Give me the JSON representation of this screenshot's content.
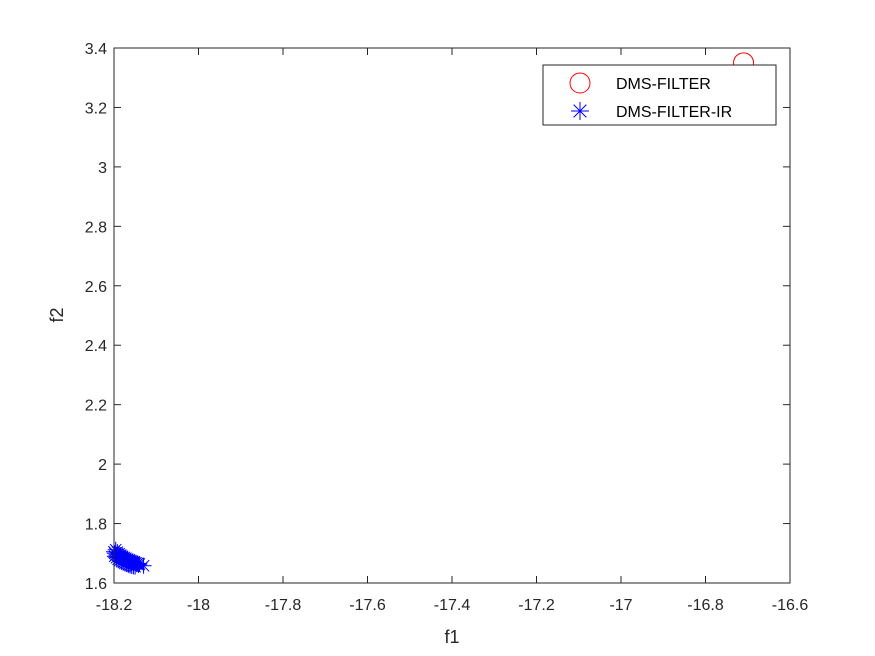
{
  "chart_data": {
    "type": "scatter",
    "title": "",
    "xlabel": "f1",
    "ylabel": "f2",
    "xlim": [
      -18.2,
      -16.6
    ],
    "ylim": [
      1.6,
      3.4
    ],
    "xticks": [
      -18.2,
      -18,
      -17.8,
      -17.6,
      -17.4,
      -17.2,
      -17,
      -16.8,
      -16.6
    ],
    "yticks": [
      1.6,
      1.8,
      2,
      2.2,
      2.4,
      2.6,
      2.8,
      3,
      3.2,
      3.4
    ],
    "grid": false,
    "legend_position": "top-right",
    "series": [
      {
        "name": "DMS-FILTER",
        "marker": "circle",
        "color": "#ff0000",
        "x": [
          -16.71
        ],
        "y": [
          3.35
        ]
      },
      {
        "name": "DMS-FILTER-IR",
        "marker": "asterisk",
        "color": "#0000ff",
        "x": [
          -18.2,
          -18.198,
          -18.196,
          -18.194,
          -18.192,
          -18.19,
          -18.188,
          -18.186,
          -18.184,
          -18.182,
          -18.18,
          -18.178,
          -18.176,
          -18.174,
          -18.172,
          -18.17,
          -18.168,
          -18.166,
          -18.164,
          -18.162,
          -18.16,
          -18.158,
          -18.156,
          -18.154,
          -18.152,
          -18.15,
          -18.148,
          -18.146,
          -18.144,
          -18.142,
          -18.14,
          -18.13,
          -18.198,
          -18.194,
          -18.19,
          -18.186,
          -18.182,
          -18.178,
          -18.174,
          -18.17,
          -18.166,
          -18.162,
          -18.158,
          -18.154,
          -18.15
        ],
        "y": [
          1.705,
          1.7,
          1.712,
          1.695,
          1.704,
          1.69,
          1.699,
          1.687,
          1.694,
          1.684,
          1.69,
          1.681,
          1.686,
          1.679,
          1.683,
          1.676,
          1.68,
          1.673,
          1.678,
          1.671,
          1.675,
          1.669,
          1.672,
          1.667,
          1.67,
          1.665,
          1.668,
          1.663,
          1.666,
          1.661,
          1.664,
          1.658,
          1.69,
          1.685,
          1.68,
          1.676,
          1.672,
          1.669,
          1.666,
          1.664,
          1.661,
          1.659,
          1.657,
          1.656,
          1.655
        ]
      }
    ]
  }
}
